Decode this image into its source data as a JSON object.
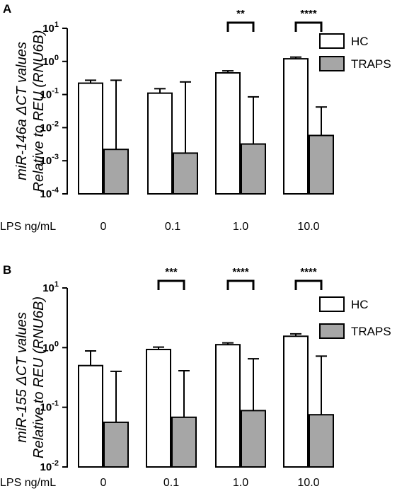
{
  "chart_data": [
    {
      "panel": "A",
      "type": "bar",
      "ylabel_line1": "miR-146a ΔCT values",
      "ylabel_line2": "Relative to REU (RNU6B)",
      "xaxis_title": "LPS ng/mL",
      "categories": [
        "0",
        "0.1",
        "1.0",
        "10.0"
      ],
      "yscale": "log",
      "ylim": [
        0.0001,
        10
      ],
      "yticks": [
        {
          "base": "10",
          "exp": "1"
        },
        {
          "base": "10",
          "exp": "0"
        },
        {
          "base": "10",
          "exp": "-1"
        },
        {
          "base": "10",
          "exp": "-2"
        },
        {
          "base": "10",
          "exp": "-3"
        },
        {
          "base": "10",
          "exp": "-4"
        }
      ],
      "legend_position": "top-right",
      "series": [
        {
          "name": "HC",
          "color": "#ffffff",
          "values": [
            0.22,
            0.11,
            0.45,
            1.2
          ],
          "error_upper": [
            0.27,
            0.15,
            0.52,
            1.35
          ]
        },
        {
          "name": "TRAPS",
          "color": "#a6a6a6",
          "values": [
            0.0022,
            0.0017,
            0.0032,
            0.0058
          ],
          "error_upper": [
            0.27,
            0.24,
            0.085,
            0.042
          ]
        }
      ],
      "significance": [
        {
          "category": "1.0",
          "label": "**"
        },
        {
          "category": "10.0",
          "label": "****"
        }
      ]
    },
    {
      "panel": "B",
      "type": "bar",
      "ylabel_line1": "miR-155 ΔCT values",
      "ylabel_line2": "Relative to REU (RNU6B)",
      "xaxis_title": "LPS ng/mL",
      "categories": [
        "0",
        "0.1",
        "1.0",
        "10.0"
      ],
      "yscale": "log",
      "ylim": [
        0.01,
        10
      ],
      "yticks": [
        {
          "base": "10",
          "exp": "1"
        },
        {
          "base": "10",
          "exp": "0"
        },
        {
          "base": "10",
          "exp": "-1"
        },
        {
          "base": "10",
          "exp": "-2"
        }
      ],
      "legend_position": "top-right",
      "series": [
        {
          "name": "HC",
          "color": "#ffffff",
          "values": [
            0.5,
            0.93,
            1.12,
            1.55
          ],
          "error_upper": [
            0.88,
            1.02,
            1.2,
            1.7
          ]
        },
        {
          "name": "TRAPS",
          "color": "#a6a6a6",
          "values": [
            0.056,
            0.068,
            0.088,
            0.075
          ],
          "error_upper": [
            0.4,
            0.41,
            0.65,
            0.72
          ]
        }
      ],
      "significance": [
        {
          "category": "0.1",
          "label": "***"
        },
        {
          "category": "1.0",
          "label": "****"
        },
        {
          "category": "10.0",
          "label": "****"
        }
      ]
    }
  ]
}
